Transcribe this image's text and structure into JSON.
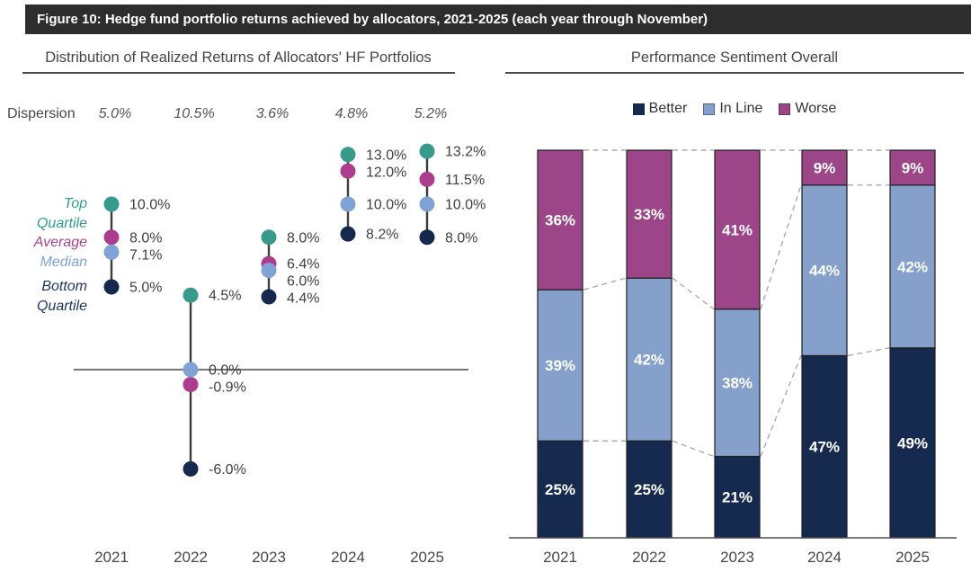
{
  "header": {
    "title": "Figure 10: Hedge fund portfolio returns achieved by allocators, 2021-2025 (each year through November)"
  },
  "colors": {
    "teal": "#379a8b",
    "magenta": "#ac3c8e",
    "light_blue": "#7fa3d4",
    "navy": "#15294f",
    "bar_better": "#16294e",
    "bar_inline": "#84a0cb",
    "bar_worse": "#9c4689",
    "label_teal_text": "#2f9c8d",
    "label_magenta_text": "#a8428f",
    "label_blue_text": "#7fa3d6",
    "label_navy_text": "#20355e",
    "header_bg": "#2d2d2d",
    "axis": "#4a4a4a",
    "dashed_line": "#ababab",
    "text_dark": "#3f3f3f",
    "text_gray": "#555555",
    "bar_label_text": "#ffffff"
  },
  "chart_data": [
    {
      "type": "scatter",
      "subtype": "dot-range-plot",
      "title": "Distribution of Realized Returns of Allocators' HF Portfolios",
      "dispersion_label": "Dispersion",
      "dispersion": [
        "5.0%",
        "10.5%",
        "3.6%",
        "4.8%",
        "5.2%"
      ],
      "categories": [
        "2021",
        "2022",
        "2023",
        "2024",
        "2025"
      ],
      "ylim": [
        -8,
        15
      ],
      "grid": false,
      "zero_axis_line": true,
      "series": [
        {
          "name": "Top Quartile",
          "color_key": "teal",
          "values": [
            10.0,
            4.5,
            8.0,
            13.0,
            13.2
          ],
          "labels": [
            "10.0%",
            "4.5%",
            "8.0%",
            "13.0%",
            "13.2%"
          ]
        },
        {
          "name": "Average",
          "color_key": "magenta",
          "values": [
            8.0,
            -0.9,
            6.4,
            12.0,
            11.5
          ],
          "labels": [
            "8.0%",
            "-0.9%",
            "6.4%",
            "12.0%",
            "11.5%"
          ]
        },
        {
          "name": "Median",
          "color_key": "light_blue",
          "values": [
            7.1,
            0.0,
            6.0,
            10.0,
            10.0
          ],
          "labels": [
            "7.1%",
            "0.0%",
            "10.0%",
            "10.0%"
          ],
          "labels_full": [
            "7.1%",
            "0.0%",
            "6.0%",
            "10.0%",
            "10.0%"
          ]
        },
        {
          "name": "Bottom Quartile",
          "color_key": "navy",
          "values": [
            5.0,
            -6.0,
            4.4,
            8.2,
            8.0
          ],
          "labels": [
            "5.0%",
            "-6.0%",
            "4.4%",
            "8.2%",
            "8.0%"
          ]
        }
      ]
    },
    {
      "type": "bar",
      "stacked": true,
      "percent_stacked": true,
      "title": "Performance Sentiment Overall",
      "categories": [
        "2021",
        "2022",
        "2023",
        "2024",
        "2025"
      ],
      "value_suffix": "%",
      "legend_position": "top-center",
      "series_connector_lines": "dashed",
      "series": [
        {
          "name": "Better",
          "color_key": "bar_better",
          "values": [
            25,
            25,
            21,
            47,
            49
          ],
          "labels": [
            "25%",
            "25%",
            "21%",
            "47%",
            "49%"
          ]
        },
        {
          "name": "In Line",
          "color_key": "bar_inline",
          "values": [
            39,
            42,
            38,
            44,
            42
          ],
          "labels": [
            "39%",
            "42%",
            "38%",
            "44%",
            "42%"
          ]
        },
        {
          "name": "Worse",
          "color_key": "bar_worse",
          "values": [
            36,
            33,
            41,
            9,
            9
          ],
          "labels": [
            "36%",
            "33%",
            "41%",
            "9%",
            "9%"
          ]
        }
      ]
    }
  ]
}
